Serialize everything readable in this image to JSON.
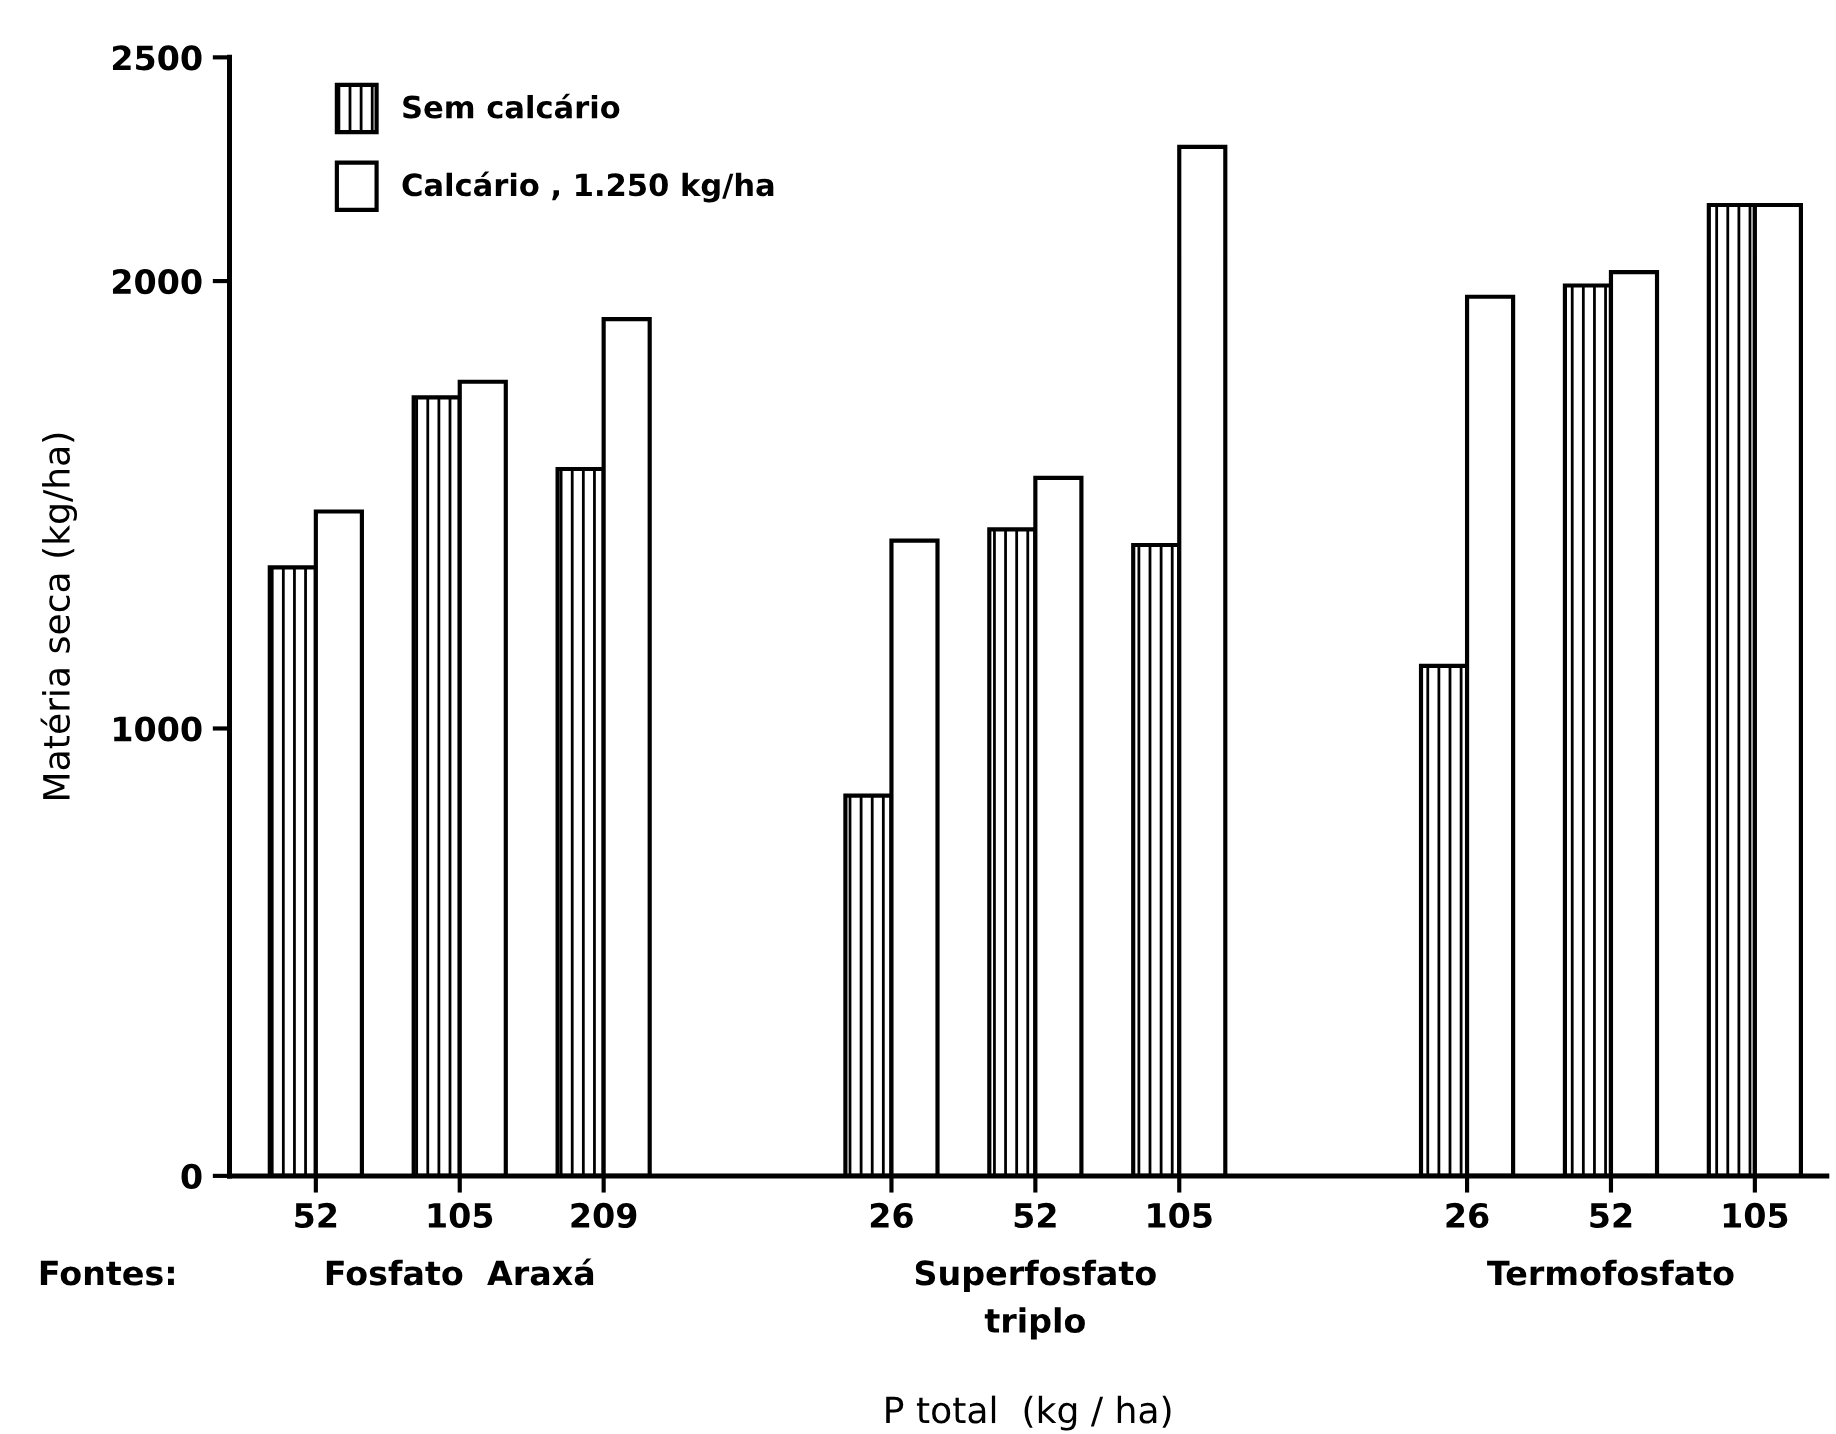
{
  "chart_data": {
    "type": "bar",
    "categories": [
      "52",
      "105",
      "209",
      null,
      "26",
      "52",
      "105",
      null,
      "26",
      "52",
      "105"
    ],
    "series": [
      {
        "name": "Sem calcário",
        "color": "#000000",
        "values": [
          1360,
          1740,
          1580,
          null,
          850,
          1445,
          1410,
          null,
          1140,
          1990,
          2170
        ]
      },
      {
        "name": "Calcário , 1.250 kg/ha",
        "color": "#ffffff",
        "values": [
          1485,
          1775,
          1915,
          null,
          1420,
          1560,
          2300,
          null,
          1965,
          2020,
          2170
        ]
      }
    ],
    "ylabel": "Matéria seca (kg/ha)",
    "xlabel": "P total  (kg / ha)",
    "annotations": [
      "Fontes:",
      "Fosfato  Araxá",
      "Superfosfato\ntriplo",
      "Termofosfato"
    ],
    "ylim": [
      0,
      2500
    ],
    "yticks": [
      0,
      1000,
      2000,
      2500
    ],
    "grid": false,
    "legend": "top left"
  }
}
